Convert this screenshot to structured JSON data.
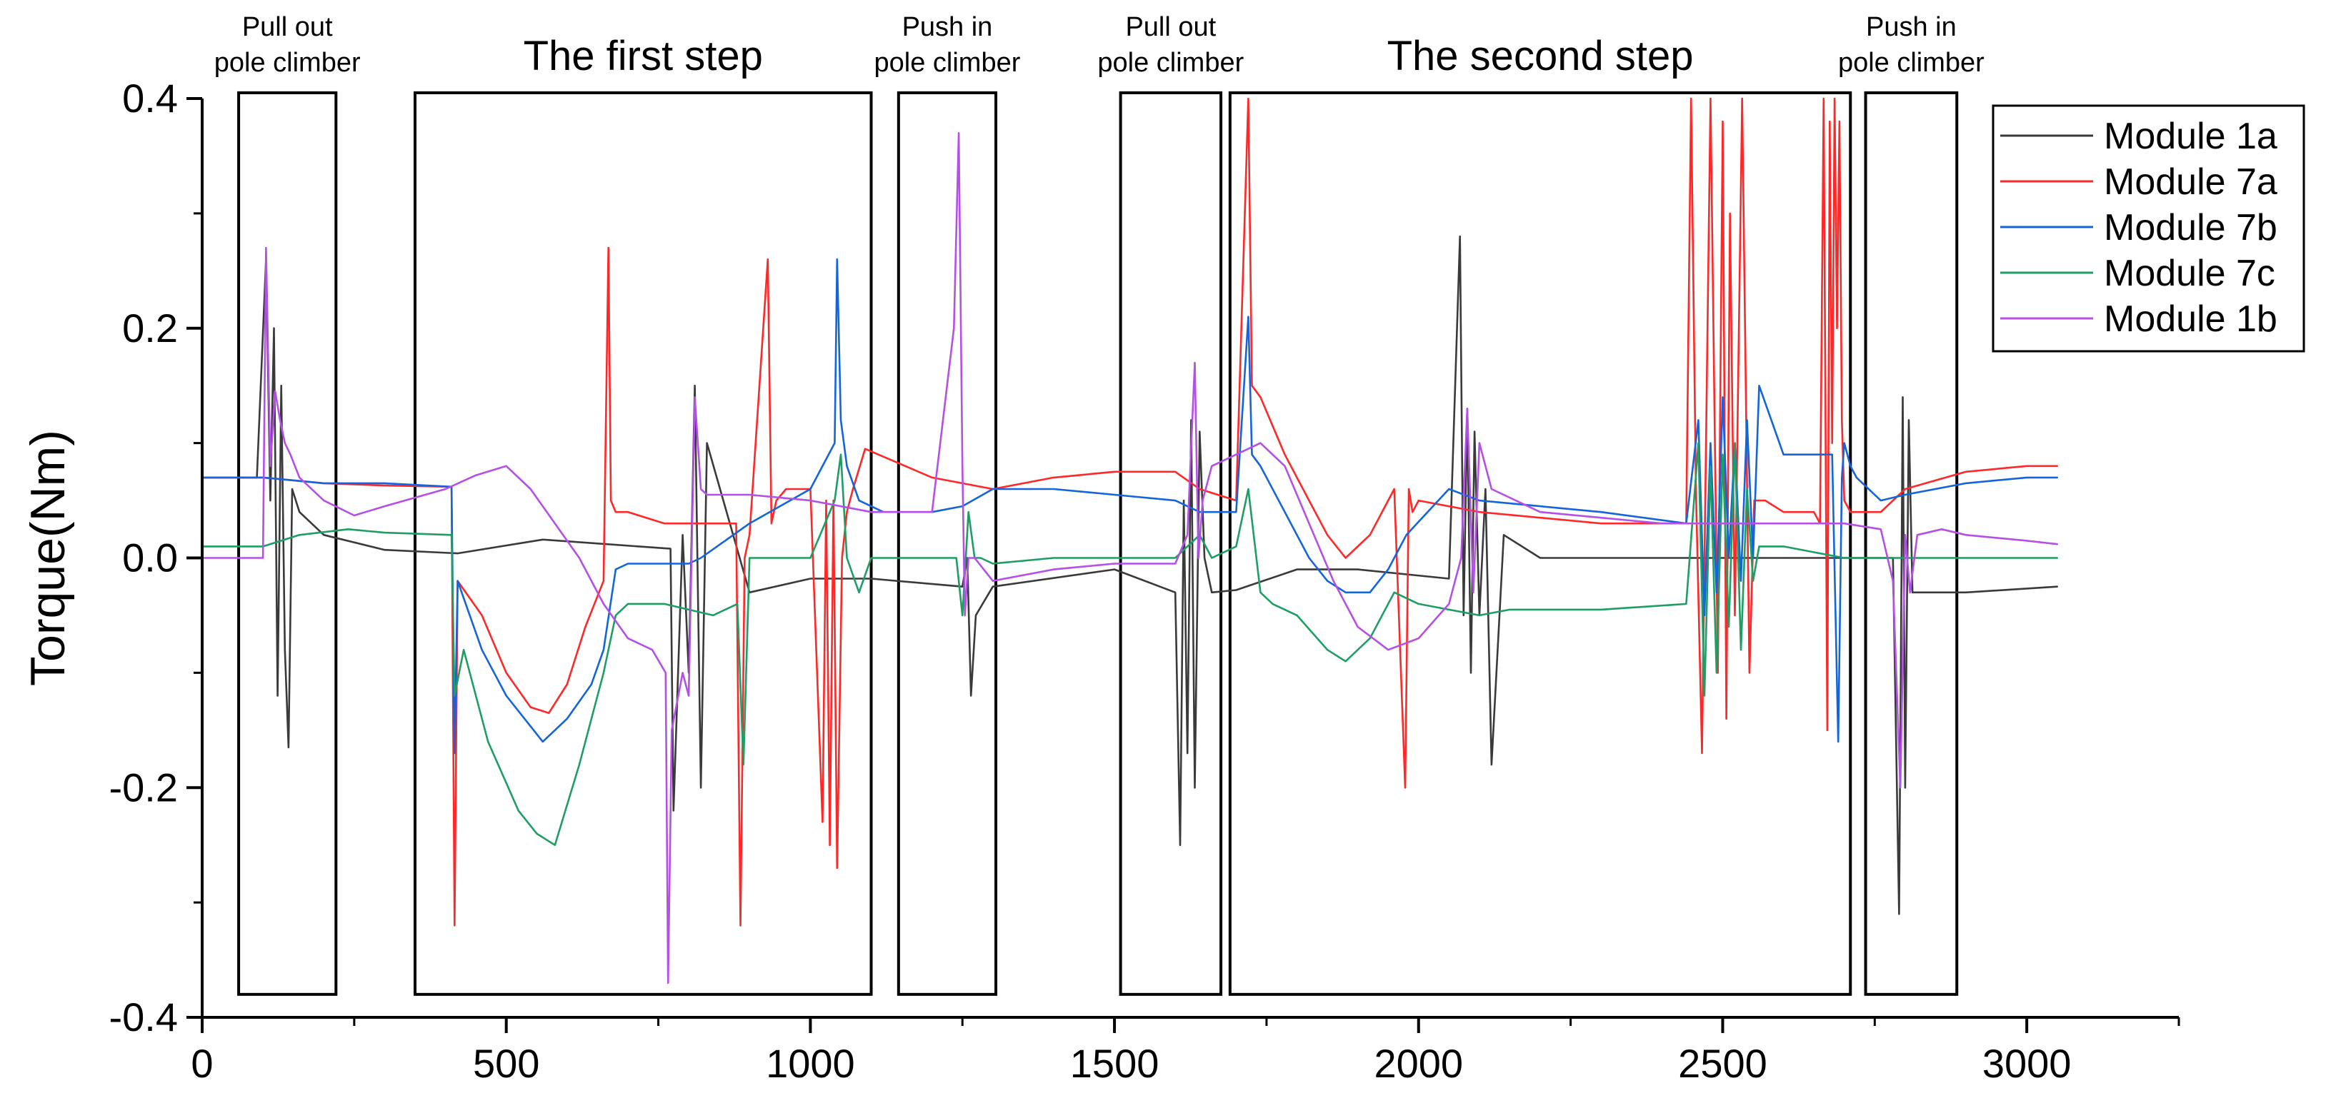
{
  "chart_data": {
    "type": "line",
    "title": "",
    "xlabel": "",
    "ylabel": "Torque(Nm)",
    "xlim": [
      0,
      3250
    ],
    "ylim": [
      -0.4,
      0.4
    ],
    "x_ticks": [
      0,
      500,
      1000,
      1500,
      2000,
      2500,
      3000
    ],
    "x_tick_labels": [
      "0",
      "500",
      "1000",
      "1500",
      "2000",
      "2500",
      "3000"
    ],
    "y_ticks": [
      -0.4,
      -0.2,
      0.0,
      0.2,
      0.4
    ],
    "y_tick_labels": [
      "-0.4",
      "-0.2",
      "0.0",
      "0.2",
      "0.4"
    ],
    "legend_position": "top-right",
    "annotations": [
      {
        "label": [
          "Pull out",
          "pole climber"
        ],
        "x_range": [
          60,
          220
        ],
        "y_range": [
          -0.38,
          0.405
        ],
        "style": "small"
      },
      {
        "label": [
          "The first step"
        ],
        "x_range": [
          350,
          1100
        ],
        "y_range": [
          -0.38,
          0.405
        ],
        "style": "big"
      },
      {
        "label": [
          "Push in",
          "pole climber"
        ],
        "x_range": [
          1145,
          1305
        ],
        "y_range": [
          -0.38,
          0.405
        ],
        "style": "small"
      },
      {
        "label": [
          "Pull out",
          "pole climber"
        ],
        "x_range": [
          1510,
          1675
        ],
        "y_range": [
          -0.38,
          0.405
        ],
        "style": "small"
      },
      {
        "label": [
          "The second step"
        ],
        "x_range": [
          1690,
          2710
        ],
        "y_range": [
          -0.38,
          0.405
        ],
        "style": "big"
      },
      {
        "label": [
          "Push in",
          "pole climber"
        ],
        "x_range": [
          2735,
          2885
        ],
        "y_range": [
          -0.38,
          0.405
        ],
        "style": "small"
      }
    ],
    "series": [
      {
        "name": "Module 1a",
        "color": "#3a3a3a",
        "x": [
          0,
          90,
          105,
          112,
          118,
          124,
          130,
          136,
          142,
          148,
          160,
          200,
          300,
          420,
          560,
          770,
          775,
          790,
          800,
          810,
          820,
          830,
          900,
          1000,
          1100,
          1250,
          1258,
          1264,
          1272,
          1300,
          1500,
          1600,
          1608,
          1614,
          1620,
          1626,
          1632,
          1640,
          1648,
          1660,
          1700,
          1800,
          1900,
          2050,
          2068,
          2074,
          2080,
          2086,
          2092,
          2100,
          2110,
          2120,
          2140,
          2200,
          2400,
          2600,
          2780,
          2790,
          2796,
          2800,
          2806,
          2812,
          2820,
          2900,
          3050
        ],
        "y": [
          0.07,
          0.07,
          0.26,
          0.05,
          0.2,
          -0.12,
          0.15,
          -0.08,
          -0.165,
          0.06,
          0.04,
          0.02,
          0.007,
          0.004,
          0.016,
          0.008,
          -0.22,
          0.02,
          -0.1,
          0.15,
          -0.2,
          0.1,
          -0.03,
          -0.018,
          -0.018,
          -0.025,
          0.0,
          -0.12,
          -0.05,
          -0.025,
          -0.01,
          -0.03,
          -0.25,
          0.05,
          -0.17,
          0.12,
          -0.2,
          0.11,
          0.0,
          -0.03,
          -0.028,
          -0.01,
          -0.01,
          -0.018,
          0.28,
          -0.05,
          0.13,
          -0.1,
          0.11,
          -0.05,
          0.06,
          -0.18,
          0.02,
          0.0,
          0.0,
          0.0,
          0.0,
          -0.31,
          0.14,
          -0.2,
          0.12,
          -0.03,
          -0.03,
          -0.03,
          -0.025
        ]
      },
      {
        "name": "Module 7a",
        "color": "#ff2828",
        "x": [
          0,
          100,
          200,
          300,
          410,
          415,
          420,
          460,
          500,
          540,
          570,
          600,
          630,
          660,
          668,
          672,
          680,
          700,
          760,
          860,
          878,
          885,
          892,
          900,
          930,
          936,
          944,
          960,
          1000,
          1020,
          1026,
          1032,
          1038,
          1044,
          1052,
          1060,
          1070,
          1090,
          1200,
          1300,
          1400,
          1500,
          1600,
          1640,
          1700,
          1720,
          1726,
          1740,
          1780,
          1820,
          1850,
          1880,
          1920,
          1960,
          1978,
          1984,
          1990,
          2000,
          2100,
          2300,
          2440,
          2448,
          2456,
          2466,
          2480,
          2492,
          2500,
          2506,
          2512,
          2520,
          2532,
          2544,
          2552,
          2560,
          2570,
          2600,
          2650,
          2660,
          2666,
          2672,
          2676,
          2680,
          2684,
          2688,
          2692,
          2696,
          2700,
          2710,
          2760,
          2800,
          2900,
          3000,
          3050
        ],
        "y": [
          0.07,
          0.07,
          0.065,
          0.063,
          0.062,
          -0.32,
          -0.02,
          -0.05,
          -0.1,
          -0.13,
          -0.135,
          -0.11,
          -0.06,
          -0.02,
          0.27,
          0.05,
          0.04,
          0.04,
          0.03,
          0.03,
          0.03,
          -0.32,
          0.0,
          0.02,
          0.26,
          0.03,
          0.05,
          0.06,
          0.06,
          -0.23,
          0.05,
          -0.25,
          0.05,
          -0.27,
          0.0,
          0.04,
          0.06,
          0.095,
          0.07,
          0.06,
          0.07,
          0.075,
          0.075,
          0.06,
          0.05,
          0.4,
          0.15,
          0.14,
          0.09,
          0.05,
          0.02,
          0.0,
          0.02,
          0.06,
          -0.2,
          0.06,
          0.04,
          0.05,
          0.04,
          0.03,
          0.03,
          0.4,
          0.06,
          -0.17,
          0.4,
          -0.1,
          0.38,
          -0.14,
          0.3,
          -0.05,
          0.4,
          -0.1,
          0.05,
          0.05,
          0.05,
          0.04,
          0.04,
          0.03,
          0.4,
          -0.15,
          0.38,
          0.1,
          0.4,
          0.2,
          0.38,
          0.12,
          0.05,
          0.04,
          0.04,
          0.06,
          0.075,
          0.08,
          0.08
        ]
      },
      {
        "name": "Module 7b",
        "color": "#1464dc",
        "x": [
          0,
          100,
          200,
          300,
          410,
          415,
          420,
          460,
          500,
          560,
          600,
          640,
          660,
          680,
          700,
          800,
          820,
          900,
          1000,
          1040,
          1044,
          1050,
          1060,
          1080,
          1120,
          1200,
          1250,
          1300,
          1400,
          1500,
          1600,
          1640,
          1700,
          1720,
          1726,
          1740,
          1780,
          1820,
          1850,
          1880,
          1920,
          1950,
          1980,
          2050,
          2100,
          2200,
          2300,
          2440,
          2460,
          2470,
          2480,
          2490,
          2500,
          2510,
          2520,
          2530,
          2540,
          2550,
          2560,
          2600,
          2650,
          2680,
          2690,
          2696,
          2700,
          2710,
          2720,
          2760,
          2800,
          2900,
          3000,
          3050
        ],
        "y": [
          0.07,
          0.07,
          0.065,
          0.065,
          0.062,
          -0.17,
          -0.02,
          -0.08,
          -0.12,
          -0.16,
          -0.14,
          -0.11,
          -0.08,
          -0.01,
          -0.005,
          -0.005,
          0.0,
          0.03,
          0.06,
          0.1,
          0.26,
          0.12,
          0.08,
          0.05,
          0.04,
          0.04,
          0.045,
          0.06,
          0.06,
          0.055,
          0.05,
          0.04,
          0.04,
          0.21,
          0.09,
          0.08,
          0.04,
          0.0,
          -0.02,
          -0.03,
          -0.03,
          -0.01,
          0.02,
          0.06,
          0.05,
          0.045,
          0.04,
          0.03,
          0.12,
          -0.05,
          0.1,
          -0.03,
          0.14,
          0.0,
          0.1,
          -0.02,
          0.12,
          0.0,
          0.15,
          0.09,
          0.09,
          0.09,
          -0.16,
          0.07,
          0.1,
          0.08,
          0.07,
          0.05,
          0.055,
          0.065,
          0.07,
          0.07
        ]
      },
      {
        "name": "Module 7c",
        "color": "#1e9e64",
        "x": [
          0,
          100,
          160,
          240,
          300,
          410,
          415,
          430,
          470,
          520,
          550,
          580,
          620,
          660,
          680,
          700,
          760,
          800,
          840,
          880,
          890,
          900,
          1000,
          1040,
          1050,
          1060,
          1080,
          1100,
          1200,
          1240,
          1250,
          1260,
          1270,
          1280,
          1300,
          1400,
          1500,
          1600,
          1640,
          1660,
          1700,
          1720,
          1740,
          1760,
          1800,
          1850,
          1880,
          1920,
          1960,
          2000,
          2050,
          2100,
          2150,
          2300,
          2440,
          2460,
          2470,
          2480,
          2490,
          2500,
          2510,
          2520,
          2530,
          2540,
          2550,
          2560,
          2600,
          2650,
          2700,
          2750,
          2800,
          2900,
          3000,
          3050
        ],
        "y": [
          0.01,
          0.01,
          0.02,
          0.025,
          0.022,
          0.02,
          -0.12,
          -0.08,
          -0.16,
          -0.22,
          -0.24,
          -0.25,
          -0.18,
          -0.1,
          -0.05,
          -0.04,
          -0.04,
          -0.045,
          -0.05,
          -0.04,
          -0.18,
          0.0,
          0.0,
          0.05,
          0.09,
          0.0,
          -0.03,
          0.0,
          0.0,
          0.0,
          -0.05,
          0.04,
          0.0,
          0.0,
          -0.005,
          0.0,
          0.0,
          0.0,
          0.02,
          0.0,
          0.01,
          0.06,
          -0.03,
          -0.04,
          -0.05,
          -0.08,
          -0.09,
          -0.07,
          -0.03,
          -0.04,
          -0.045,
          -0.05,
          -0.045,
          -0.045,
          -0.04,
          0.1,
          -0.12,
          0.08,
          -0.1,
          0.09,
          -0.06,
          0.1,
          -0.08,
          0.06,
          -0.02,
          0.01,
          0.01,
          0.005,
          0.0,
          0.0,
          0.0,
          0.0,
          0.0,
          0.0
        ]
      },
      {
        "name": "Module 1b",
        "color": "#b450e6",
        "x": [
          0,
          100,
          105,
          112,
          120,
          128,
          136,
          145,
          160,
          200,
          250,
          300,
          400,
          450,
          500,
          540,
          580,
          620,
          660,
          700,
          740,
          762,
          766,
          772,
          790,
          800,
          810,
          820,
          830,
          900,
          1000,
          1100,
          1200,
          1236,
          1244,
          1250,
          1254,
          1260,
          1270,
          1300,
          1400,
          1500,
          1600,
          1620,
          1632,
          1638,
          1645,
          1660,
          1700,
          1740,
          1780,
          1820,
          1860,
          1900,
          1950,
          2000,
          2050,
          2070,
          2080,
          2090,
          2100,
          2120,
          2200,
          2300,
          2400,
          2500,
          2600,
          2700,
          2760,
          2780,
          2792,
          2800,
          2808,
          2820,
          2860,
          2900,
          3000,
          3050
        ],
        "y": [
          0.0,
          0.0,
          0.27,
          0.08,
          0.145,
          0.12,
          0.1,
          0.09,
          0.07,
          0.05,
          0.037,
          0.045,
          0.06,
          0.072,
          0.08,
          0.06,
          0.03,
          0.0,
          -0.04,
          -0.07,
          -0.08,
          -0.1,
          -0.37,
          -0.15,
          -0.1,
          -0.12,
          0.14,
          0.06,
          0.055,
          0.055,
          0.05,
          0.04,
          0.04,
          0.2,
          0.37,
          0.08,
          -0.05,
          0.0,
          0.0,
          -0.02,
          -0.01,
          -0.005,
          -0.005,
          0.02,
          0.17,
          0.0,
          0.05,
          0.08,
          0.09,
          0.1,
          0.08,
          0.03,
          -0.02,
          -0.06,
          -0.08,
          -0.07,
          -0.04,
          0.0,
          0.13,
          -0.03,
          0.1,
          0.06,
          0.04,
          0.035,
          0.03,
          0.03,
          0.03,
          0.03,
          0.025,
          -0.02,
          -0.2,
          0.02,
          -0.03,
          0.02,
          0.025,
          0.02,
          0.015,
          0.012
        ]
      }
    ]
  }
}
